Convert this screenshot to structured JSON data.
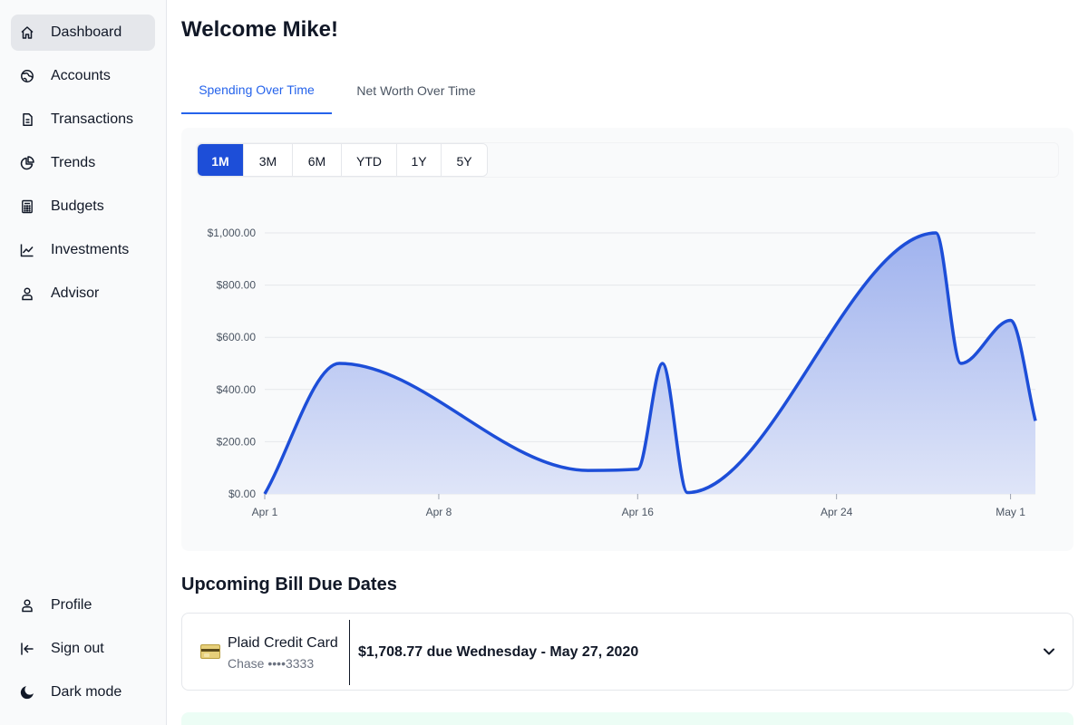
{
  "sidebar": {
    "items": [
      {
        "id": "dashboard",
        "label": "Dashboard",
        "icon": "home-icon",
        "active": true
      },
      {
        "id": "accounts",
        "label": "Accounts",
        "icon": "globe-icon",
        "active": false
      },
      {
        "id": "transactions",
        "label": "Transactions",
        "icon": "document-icon",
        "active": false
      },
      {
        "id": "trends",
        "label": "Trends",
        "icon": "pie-chart-icon",
        "active": false
      },
      {
        "id": "budgets",
        "label": "Budgets",
        "icon": "calculator-icon",
        "active": false
      },
      {
        "id": "investments",
        "label": "Investments",
        "icon": "line-chart-icon",
        "active": false
      },
      {
        "id": "advisor",
        "label": "Advisor",
        "icon": "user-icon",
        "active": false
      }
    ],
    "bottom_items": [
      {
        "id": "profile",
        "label": "Profile",
        "icon": "user-icon"
      },
      {
        "id": "sign-out",
        "label": "Sign out",
        "icon": "sign-out-icon"
      },
      {
        "id": "dark-mode",
        "label": "Dark mode",
        "icon": "moon-icon"
      }
    ]
  },
  "header": {
    "title": "Welcome Mike!"
  },
  "tabs": [
    {
      "label": "Spending Over Time",
      "active": true
    },
    {
      "label": "Net Worth Over Time",
      "active": false
    }
  ],
  "range_buttons": [
    {
      "label": "1M",
      "active": true
    },
    {
      "label": "3M",
      "active": false
    },
    {
      "label": "6M",
      "active": false
    },
    {
      "label": "YTD",
      "active": false
    },
    {
      "label": "1Y",
      "active": false
    },
    {
      "label": "5Y",
      "active": false
    }
  ],
  "colors": {
    "accent": "#2563eb",
    "line": "#1d4ed8",
    "area_top": "#9fb2ee",
    "area_bottom": "#dfe5f8"
  },
  "chart_data": {
    "type": "area",
    "title": "Spending Over Time",
    "xlabel": "",
    "ylabel": "",
    "x_ticks": [
      {
        "day": 0,
        "label": "Apr 1"
      },
      {
        "day": 7,
        "label": "Apr 8"
      },
      {
        "day": 15,
        "label": "Apr 16"
      },
      {
        "day": 23,
        "label": "Apr 24"
      },
      {
        "day": 30,
        "label": "May 1"
      }
    ],
    "y_ticks": [
      "$0.00",
      "$200.00",
      "$400.00",
      "$600.00",
      "$800.00",
      "$1,000.00"
    ],
    "y_tick_values": [
      0,
      200,
      400,
      600,
      800,
      1000
    ],
    "xlim": [
      0,
      31
    ],
    "ylim": [
      0,
      1000
    ],
    "points": [
      {
        "x": 0,
        "y": 0
      },
      {
        "x": 3,
        "y": 500
      },
      {
        "x": 13,
        "y": 90
      },
      {
        "x": 15,
        "y": 95
      },
      {
        "x": 16,
        "y": 500
      },
      {
        "x": 17,
        "y": 5
      },
      {
        "x": 27,
        "y": 1000
      },
      {
        "x": 28,
        "y": 500
      },
      {
        "x": 30,
        "y": 665
      },
      {
        "x": 31,
        "y": 280
      }
    ],
    "grid": true
  },
  "bills": {
    "section_title": "Upcoming Bill Due Dates",
    "items": [
      {
        "name": "Plaid Credit Card",
        "subtitle": "Chase ••••3333",
        "amount_text": "$1,708.77 due Wednesday - May 27, 2020",
        "icon": "credit-card-icon"
      }
    ]
  }
}
